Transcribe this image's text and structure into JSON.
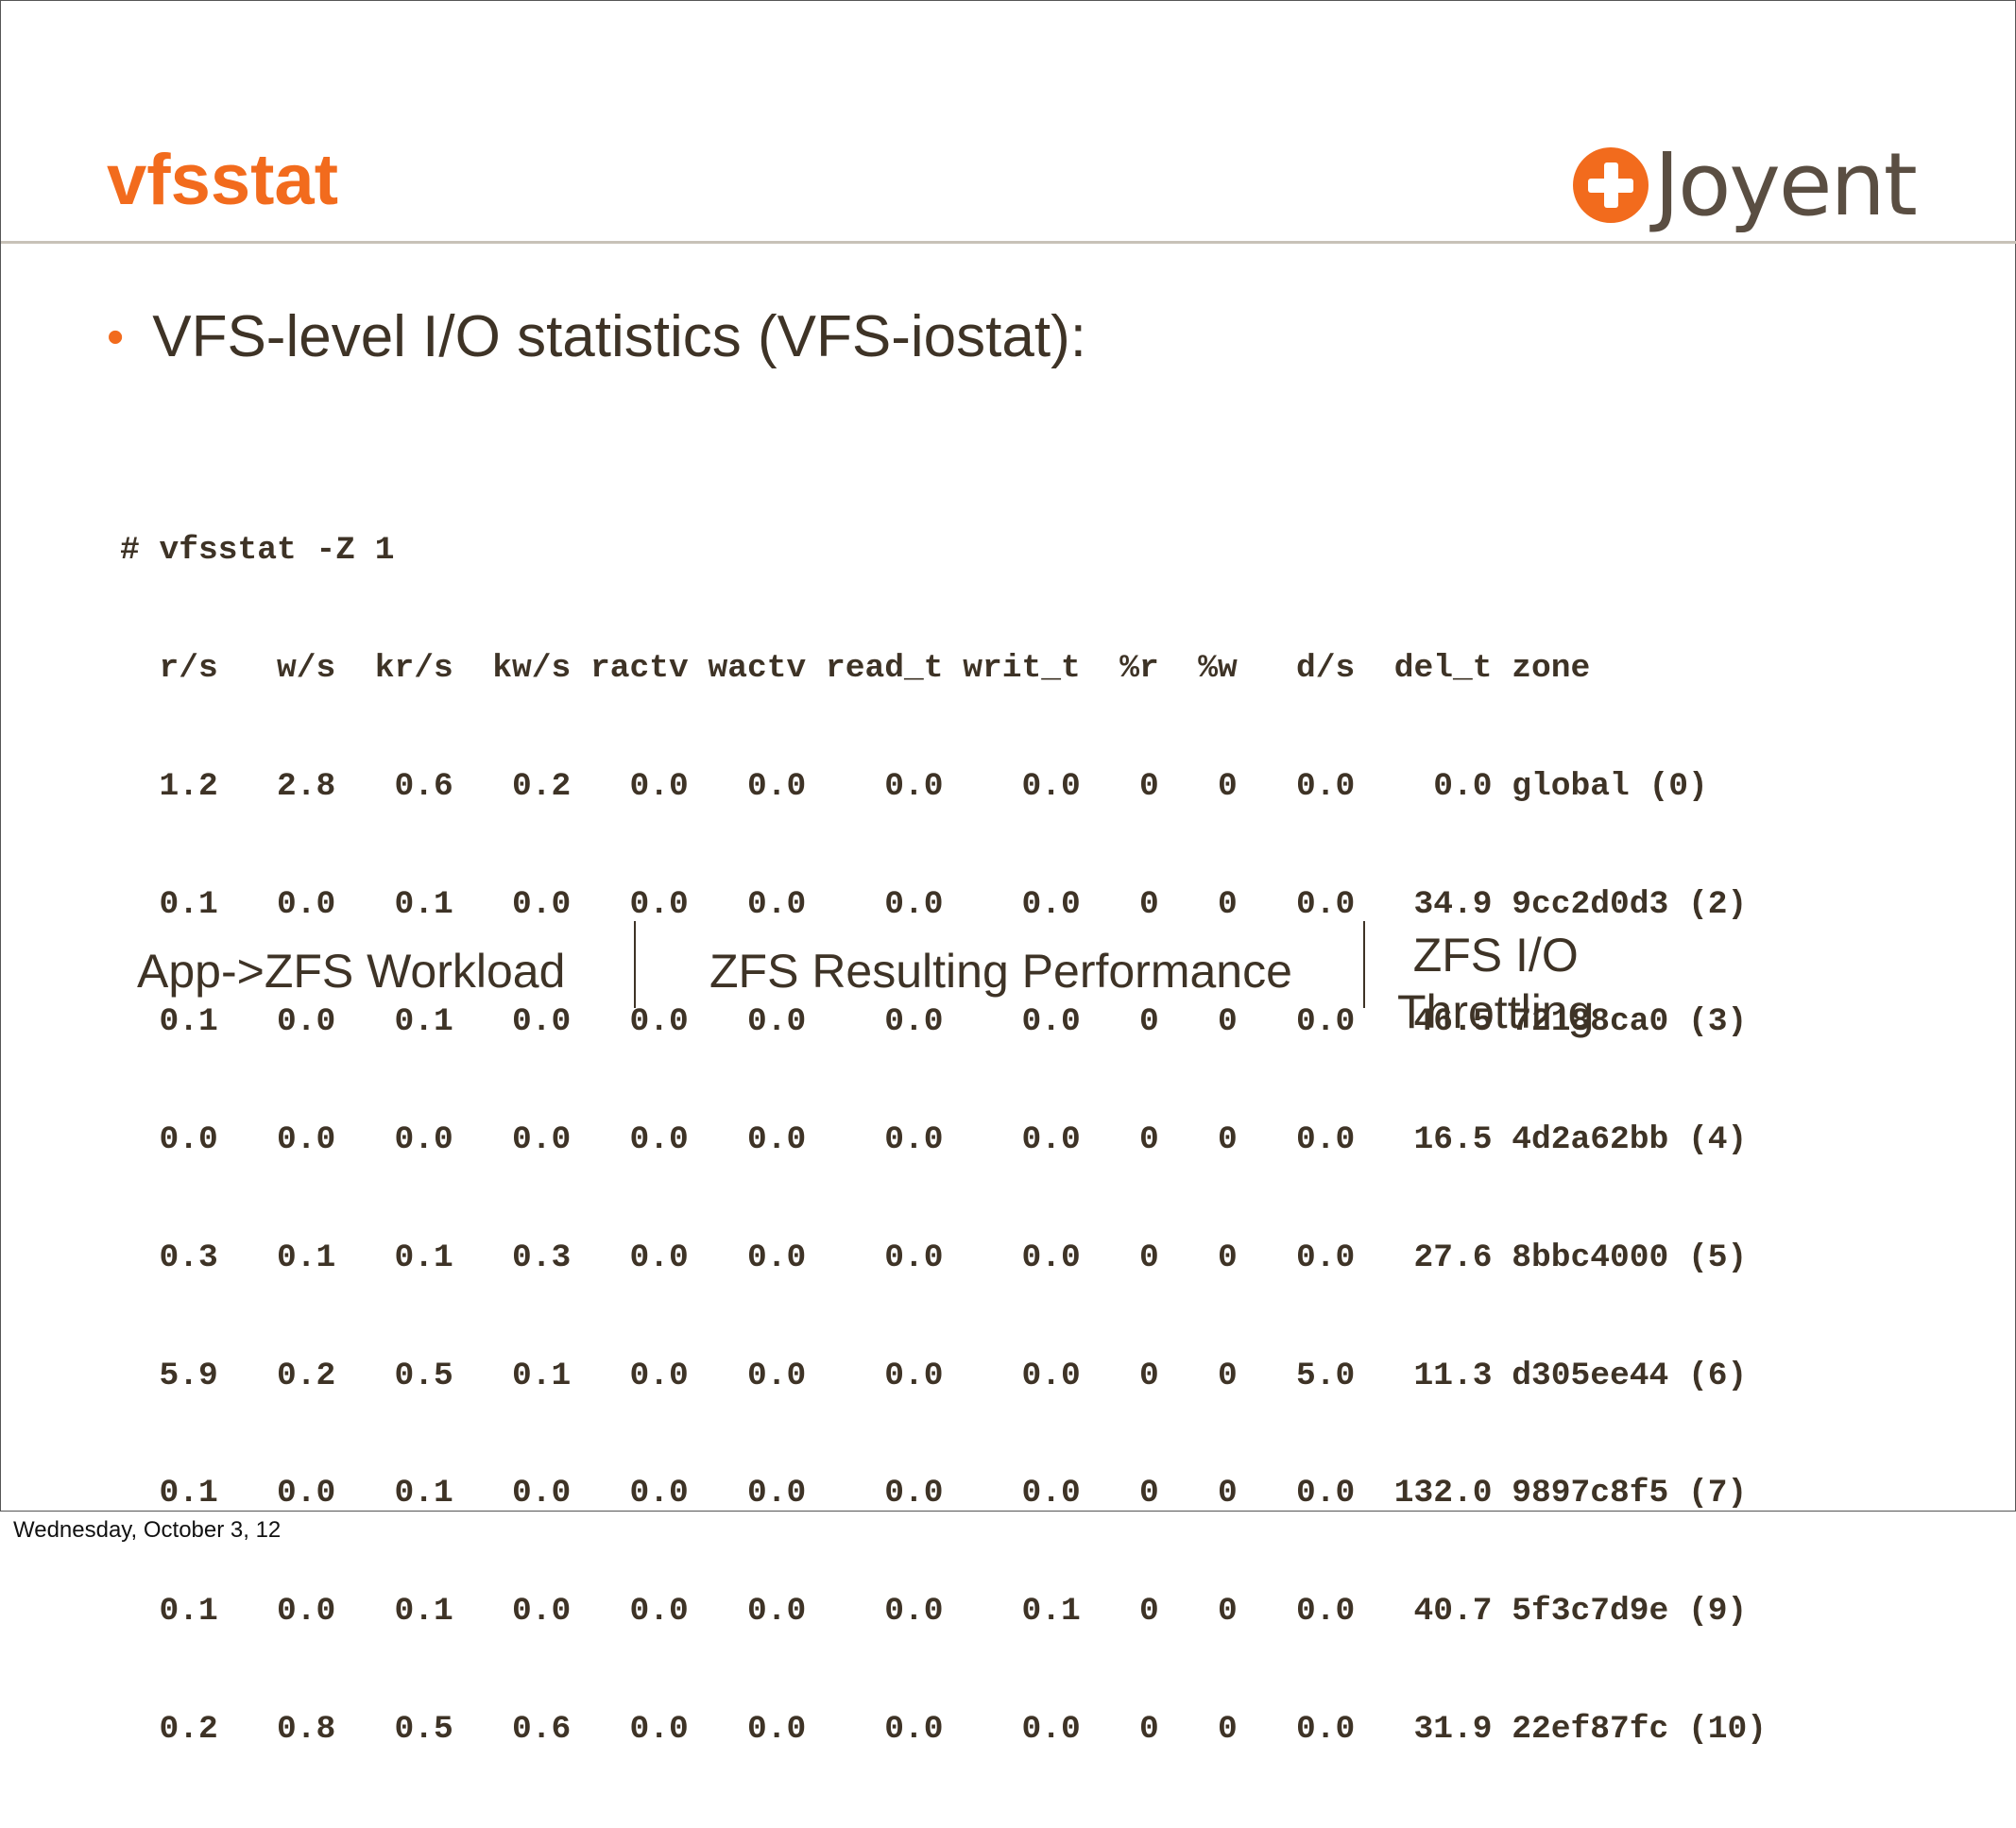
{
  "slide": {
    "title": "vfsstat",
    "logo_text": "Joyent",
    "logo_icon": "joyent-plus-logo-icon",
    "bullet": "VFS-level I/O statistics (VFS-iostat):",
    "command": "# vfsstat -Z 1",
    "header_line": "  r/s   w/s  kr/s  kw/s ractv wactv read_t writ_t  %r  %w   d/s  del_t zone",
    "rows": [
      "  1.2   2.8   0.6   0.2   0.0   0.0    0.0    0.0   0   0   0.0    0.0 global (0)",
      "  0.1   0.0   0.1   0.0   0.0   0.0    0.0    0.0   0   0   0.0   34.9 9cc2d0d3 (2)",
      "  0.1   0.0   0.1   0.0   0.0   0.0    0.0    0.0   0   0   0.0   46.5 72188ca0 (3)",
      "  0.0   0.0   0.0   0.0   0.0   0.0    0.0    0.0   0   0   0.0   16.5 4d2a62bb (4)",
      "  0.3   0.1   0.1   0.3   0.0   0.0    0.0    0.0   0   0   0.0   27.6 8bbc4000 (5)",
      "  5.9   0.2   0.5   0.1   0.0   0.0    0.0    0.0   0   0   5.0   11.3 d305ee44 (6)",
      "  0.1   0.0   0.1   0.0   0.0   0.0    0.0    0.0   0   0   0.0  132.0 9897c8f5 (7)",
      "  0.1   0.0   0.1   0.0   0.0   0.0    0.0    0.1   0   0   0.0   40.7 5f3c7d9e (9)",
      "  0.2   0.8   0.5   0.6   0.0   0.0    0.0    0.0   0   0   0.0   31.9 22ef87fc (10)"
    ],
    "categories": {
      "workload": "App->ZFS Workload",
      "performance": "ZFS Resulting Performance",
      "throttle_line1": "ZFS I/O",
      "throttle_line2": "Throttling"
    },
    "footer_date": "Wednesday, October 3, 12",
    "colors": {
      "accent": "#f26b1d",
      "text": "#3e3326",
      "logo_text": "#5a4e42"
    }
  }
}
